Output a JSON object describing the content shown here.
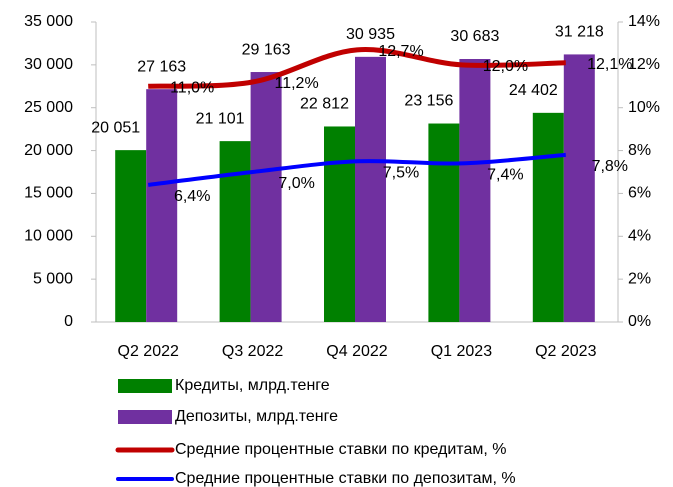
{
  "chart_data": {
    "type": "combo",
    "categories": [
      "Q2 2022",
      "Q3 2022",
      "Q4 2022",
      "Q1 2023",
      "Q2 2023"
    ],
    "series": [
      {
        "name": "Кредиты, млрд.тенге",
        "type": "bar",
        "color": "#008000",
        "values": [
          20051,
          21101,
          22812,
          23156,
          24402
        ],
        "value_labels": [
          "20 051",
          "21 101",
          "22 812",
          "23 156",
          "24 402"
        ]
      },
      {
        "name": "Депозиты, млрд.тенге",
        "type": "bar",
        "color": "#7030a0",
        "values": [
          27163,
          29163,
          30935,
          30683,
          31218
        ],
        "value_labels": [
          "27 163",
          "29 163",
          "30 935",
          "30 683",
          "31 218"
        ]
      },
      {
        "name": "Средние процентные ставки по кредитам, %",
        "type": "line",
        "axis": "y2",
        "color": "#c00000",
        "values": [
          11.0,
          11.2,
          12.7,
          12.0,
          12.1
        ],
        "value_labels": [
          "11,0%",
          "11,2%",
          "12,7%",
          "12,0%",
          "12,1%"
        ]
      },
      {
        "name": "Средние процентные ставки по депозитам, %",
        "type": "line",
        "axis": "y2",
        "color": "#0000ff",
        "values": [
          6.4,
          7.0,
          7.5,
          7.4,
          7.8
        ],
        "value_labels": [
          "6,4%",
          "7,0%",
          "7,5%",
          "7,4%",
          "7,8%"
        ]
      }
    ],
    "ylim": [
      0,
      35000
    ],
    "yticks": [
      0,
      {
        "value": 5000,
        "label": "5 000"
      },
      {
        "value": 10000,
        "label": "10 000"
      },
      {
        "value": 15000,
        "label": "15 000"
      },
      {
        "value": 20000,
        "label": "20 000"
      },
      {
        "value": 25000,
        "label": "25 000"
      },
      {
        "value": 30000,
        "label": "30 000"
      },
      {
        "value": 35000,
        "label": "35 000"
      }
    ],
    "y2lim": [
      0,
      14
    ],
    "y2ticks": [
      {
        "value": 0,
        "label": "0%"
      },
      {
        "value": 2,
        "label": "2%"
      },
      {
        "value": 4,
        "label": "4%"
      },
      {
        "value": 6,
        "label": "6%"
      },
      {
        "value": 8,
        "label": "8%"
      },
      {
        "value": 10,
        "label": "10%"
      },
      {
        "value": 12,
        "label": "12%"
      },
      {
        "value": 14,
        "label": "14%"
      }
    ],
    "grid": false,
    "legend": "bottom"
  }
}
